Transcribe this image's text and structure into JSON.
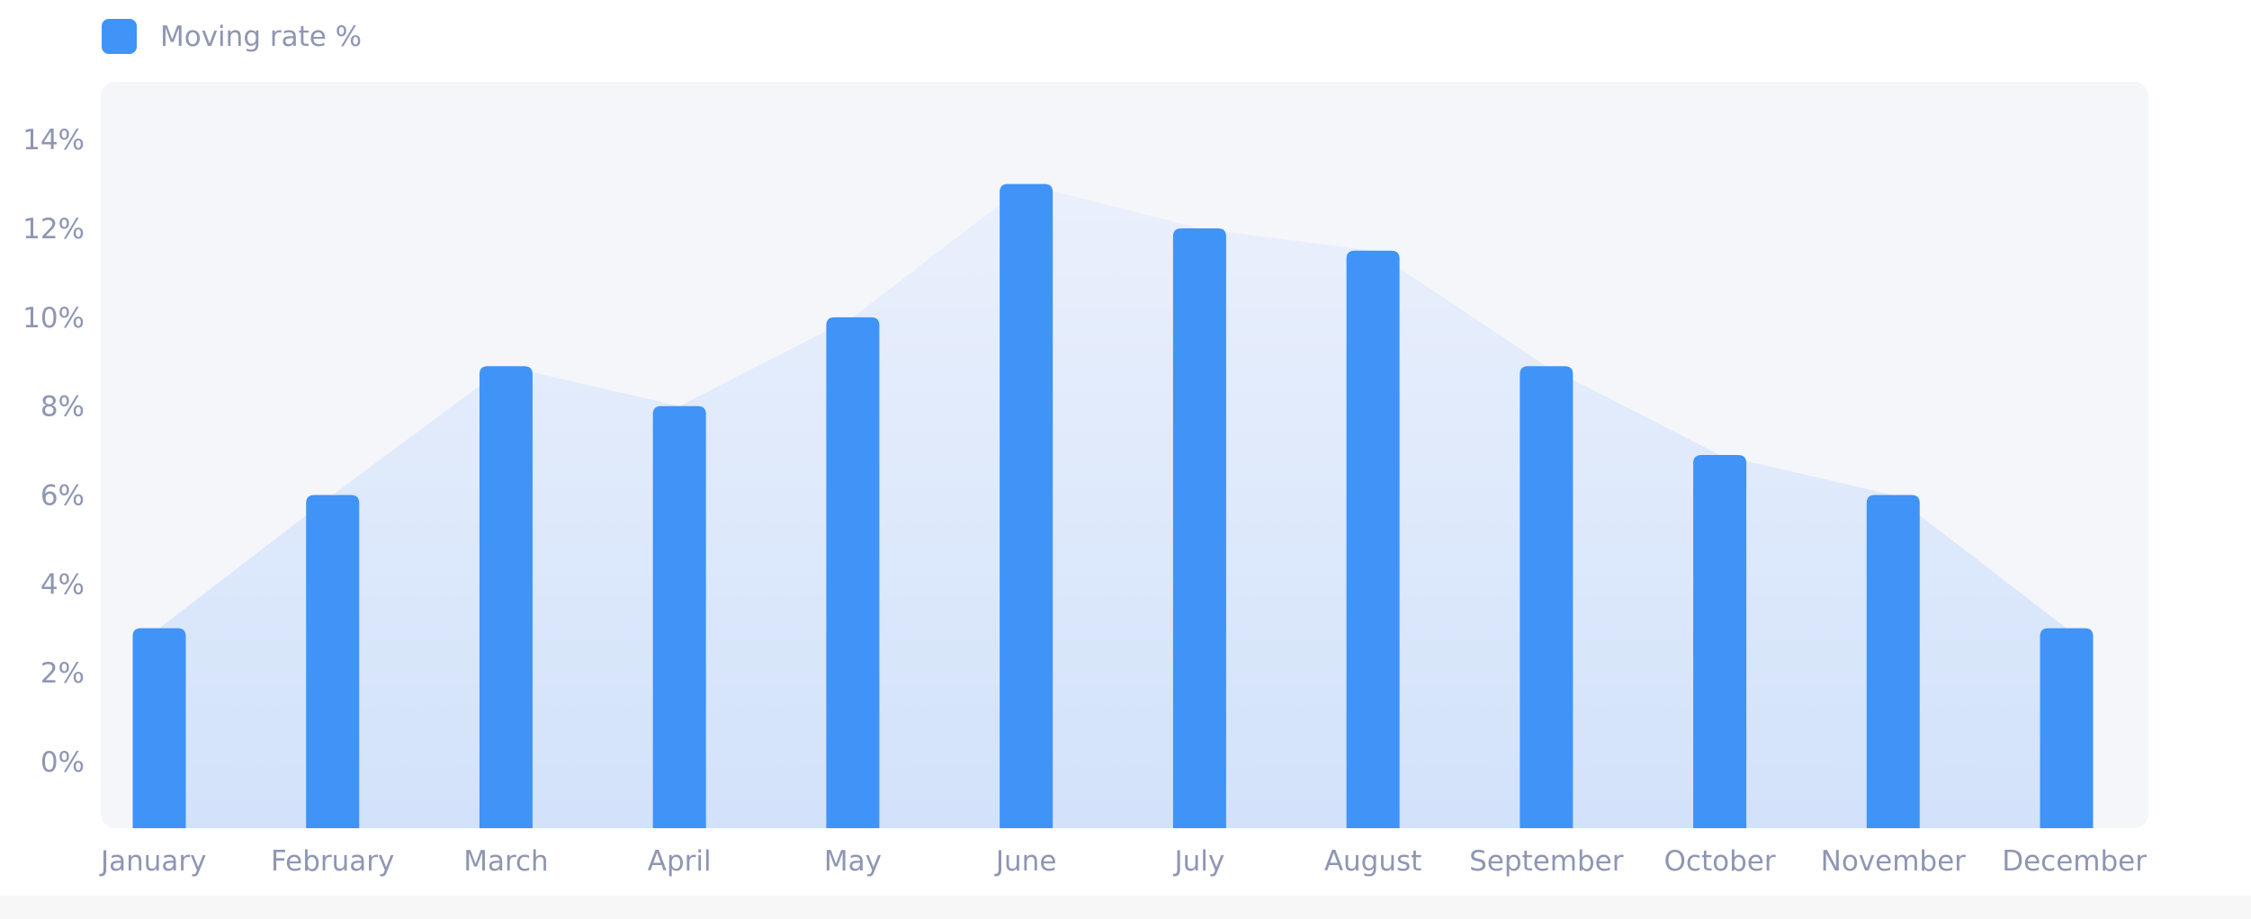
{
  "colors": {
    "bar": "#4093f7",
    "plot_background": "#f5f6fa",
    "area_top": "#eaf0fc",
    "area_bottom": "#d2e2fa",
    "tick_text": "#8f96b3"
  },
  "chart_data": {
    "type": "bar",
    "title": "",
    "xlabel": "",
    "ylabel": "",
    "legend": {
      "position": "top-left",
      "entries": [
        {
          "label": "Moving rate %",
          "color": "#4093f7"
        }
      ]
    },
    "categories": [
      "January",
      "February",
      "March",
      "April",
      "May",
      "June",
      "July",
      "August",
      "September",
      "October",
      "November",
      "December"
    ],
    "series": [
      {
        "name": "Moving rate %",
        "values": [
          3,
          6,
          8.9,
          8,
          10,
          13,
          12,
          11.5,
          8.9,
          6.9,
          6,
          3
        ]
      }
    ],
    "background_area": {
      "values": [
        3,
        6,
        8.9,
        8,
        10,
        13,
        12,
        11.5,
        8.9,
        6.9,
        6,
        3
      ]
    },
    "ylim": [
      -1.5,
      15.3
    ],
    "yticks": [
      0,
      2,
      4,
      6,
      8,
      10,
      12,
      14
    ],
    "ytick_labels": [
      "0%",
      "2%",
      "4%",
      "6%",
      "8%",
      "10%",
      "12%",
      "14%"
    ],
    "grid": false
  }
}
